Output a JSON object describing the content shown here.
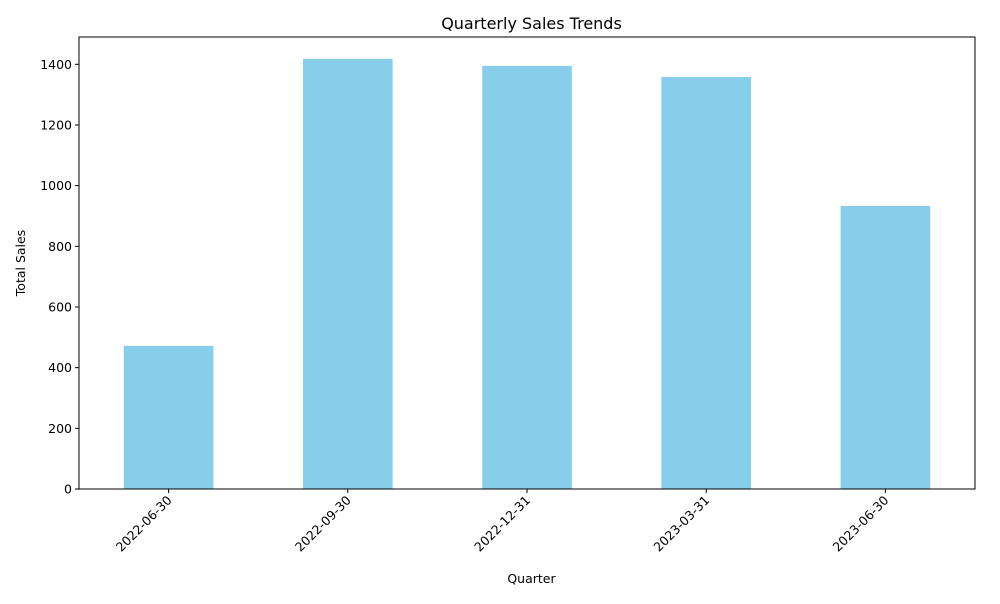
{
  "chart_data": {
    "type": "bar",
    "title": "Quarterly Sales Trends",
    "xlabel": "Quarter",
    "ylabel": "Total Sales",
    "categories": [
      "2022-06-30",
      "2022-09-30",
      "2022-12-31",
      "2023-03-31",
      "2023-06-30"
    ],
    "values": [
      472,
      1418,
      1395,
      1358,
      933
    ],
    "ylim": [
      0,
      1490
    ],
    "yticks": [
      0,
      200,
      400,
      600,
      800,
      1000,
      1200,
      1400
    ],
    "bar_color": "#87CEEB",
    "grid": false,
    "legend": "none",
    "xtick_rotation": "45 degrees"
  }
}
